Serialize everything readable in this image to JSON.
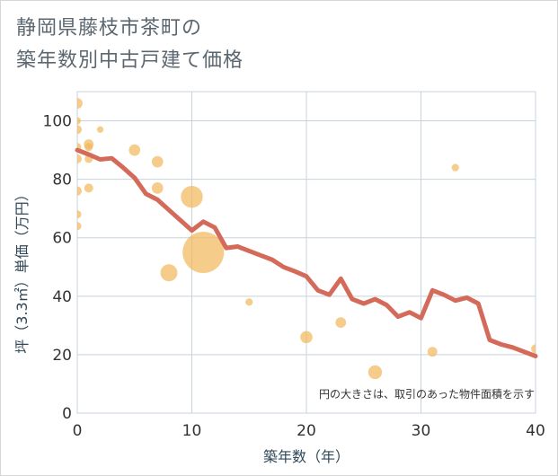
{
  "chart_data": {
    "type": "scatter",
    "title_line1": "静岡県藤枝市茶町の",
    "title_line2": "築年数別中古戸建て価格",
    "xlabel": "築年数（年）",
    "ylabel": "坪（3.3㎡）単価（万円）",
    "xlim": [
      0,
      40
    ],
    "ylim": [
      0,
      110
    ],
    "xticks": [
      0,
      10,
      20,
      30,
      40
    ],
    "yticks": [
      0,
      20,
      40,
      60,
      80,
      100
    ],
    "grid": true,
    "note": "円の大きさは、取引のあった物件面積を示す",
    "colors": {
      "bubble": "#f2b75a",
      "line": "#d46b5a",
      "grid": "#c7d3dc"
    },
    "scatter": [
      {
        "x": 0,
        "y": 106,
        "size": 1.2
      },
      {
        "x": 0,
        "y": 100,
        "size": 0.8
      },
      {
        "x": 0,
        "y": 97,
        "size": 1.0
      },
      {
        "x": 0,
        "y": 91,
        "size": 0.9
      },
      {
        "x": 0,
        "y": 87,
        "size": 1.0
      },
      {
        "x": 0,
        "y": 76,
        "size": 1.0
      },
      {
        "x": 0,
        "y": 68,
        "size": 0.9
      },
      {
        "x": 0,
        "y": 64,
        "size": 0.9
      },
      {
        "x": 1,
        "y": 92,
        "size": 1.1
      },
      {
        "x": 1,
        "y": 91,
        "size": 0.9
      },
      {
        "x": 1,
        "y": 87,
        "size": 0.9
      },
      {
        "x": 1,
        "y": 77,
        "size": 1.0
      },
      {
        "x": 2,
        "y": 97,
        "size": 0.7
      },
      {
        "x": 5,
        "y": 90,
        "size": 1.3
      },
      {
        "x": 7,
        "y": 86,
        "size": 1.3
      },
      {
        "x": 7,
        "y": 77,
        "size": 1.3
      },
      {
        "x": 8,
        "y": 48,
        "size": 2.0
      },
      {
        "x": 10,
        "y": 74,
        "size": 2.6
      },
      {
        "x": 11,
        "y": 55,
        "size": 5.0
      },
      {
        "x": 15,
        "y": 38,
        "size": 0.8
      },
      {
        "x": 20,
        "y": 26,
        "size": 1.4
      },
      {
        "x": 23,
        "y": 31,
        "size": 1.2
      },
      {
        "x": 26,
        "y": 14,
        "size": 1.6
      },
      {
        "x": 31,
        "y": 21,
        "size": 1.1
      },
      {
        "x": 33,
        "y": 84,
        "size": 0.8
      },
      {
        "x": 40,
        "y": 22,
        "size": 1.0
      }
    ],
    "trend": {
      "x": [
        0,
        1,
        2,
        3,
        4,
        5,
        6,
        7,
        8,
        9,
        10,
        11,
        12,
        13,
        14,
        15,
        16,
        17,
        18,
        19,
        20,
        21,
        22,
        23,
        24,
        25,
        26,
        27,
        28,
        29,
        30,
        31,
        32,
        33,
        34,
        35,
        36,
        37,
        38,
        39,
        40
      ],
      "y": [
        90,
        88.5,
        86.8,
        87.2,
        84,
        80.5,
        75,
        73,
        69.5,
        66,
        62.5,
        65.5,
        63.5,
        56.5,
        57,
        55.5,
        54,
        52.5,
        50,
        48.5,
        46.8,
        42,
        40.5,
        46,
        39,
        37.5,
        39,
        37,
        33,
        34.5,
        32.5,
        42,
        40.5,
        38.5,
        39.5,
        37.5,
        25,
        23.5,
        22.5,
        21,
        19.5
      ]
    }
  }
}
